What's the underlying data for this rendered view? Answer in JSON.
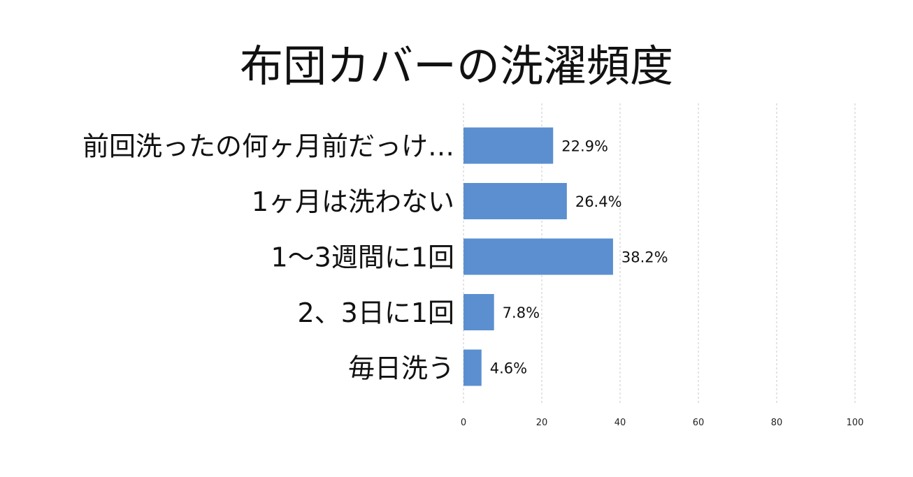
{
  "chart_data": {
    "type": "bar",
    "orientation": "horizontal",
    "title": "布団カバーの洗濯頻度",
    "categories": [
      "前回洗ったの何ヶ月前だっけ…",
      "1ヶ月は洗わない",
      "1〜3週間に1回",
      "2、3日に1回",
      "毎日洗う"
    ],
    "values": [
      22.9,
      26.4,
      38.2,
      7.8,
      4.6
    ],
    "data_labels": [
      "22.9%",
      "26.4%",
      "38.2%",
      "7.8%",
      "4.6%"
    ],
    "xlim": [
      0,
      100
    ],
    "x_ticks": [
      "0",
      "20",
      "40",
      "60",
      "80",
      "100"
    ],
    "grid": "vertical dashed",
    "bar_color": "#5b8fd0",
    "grid_color": "#c8c8c8"
  }
}
